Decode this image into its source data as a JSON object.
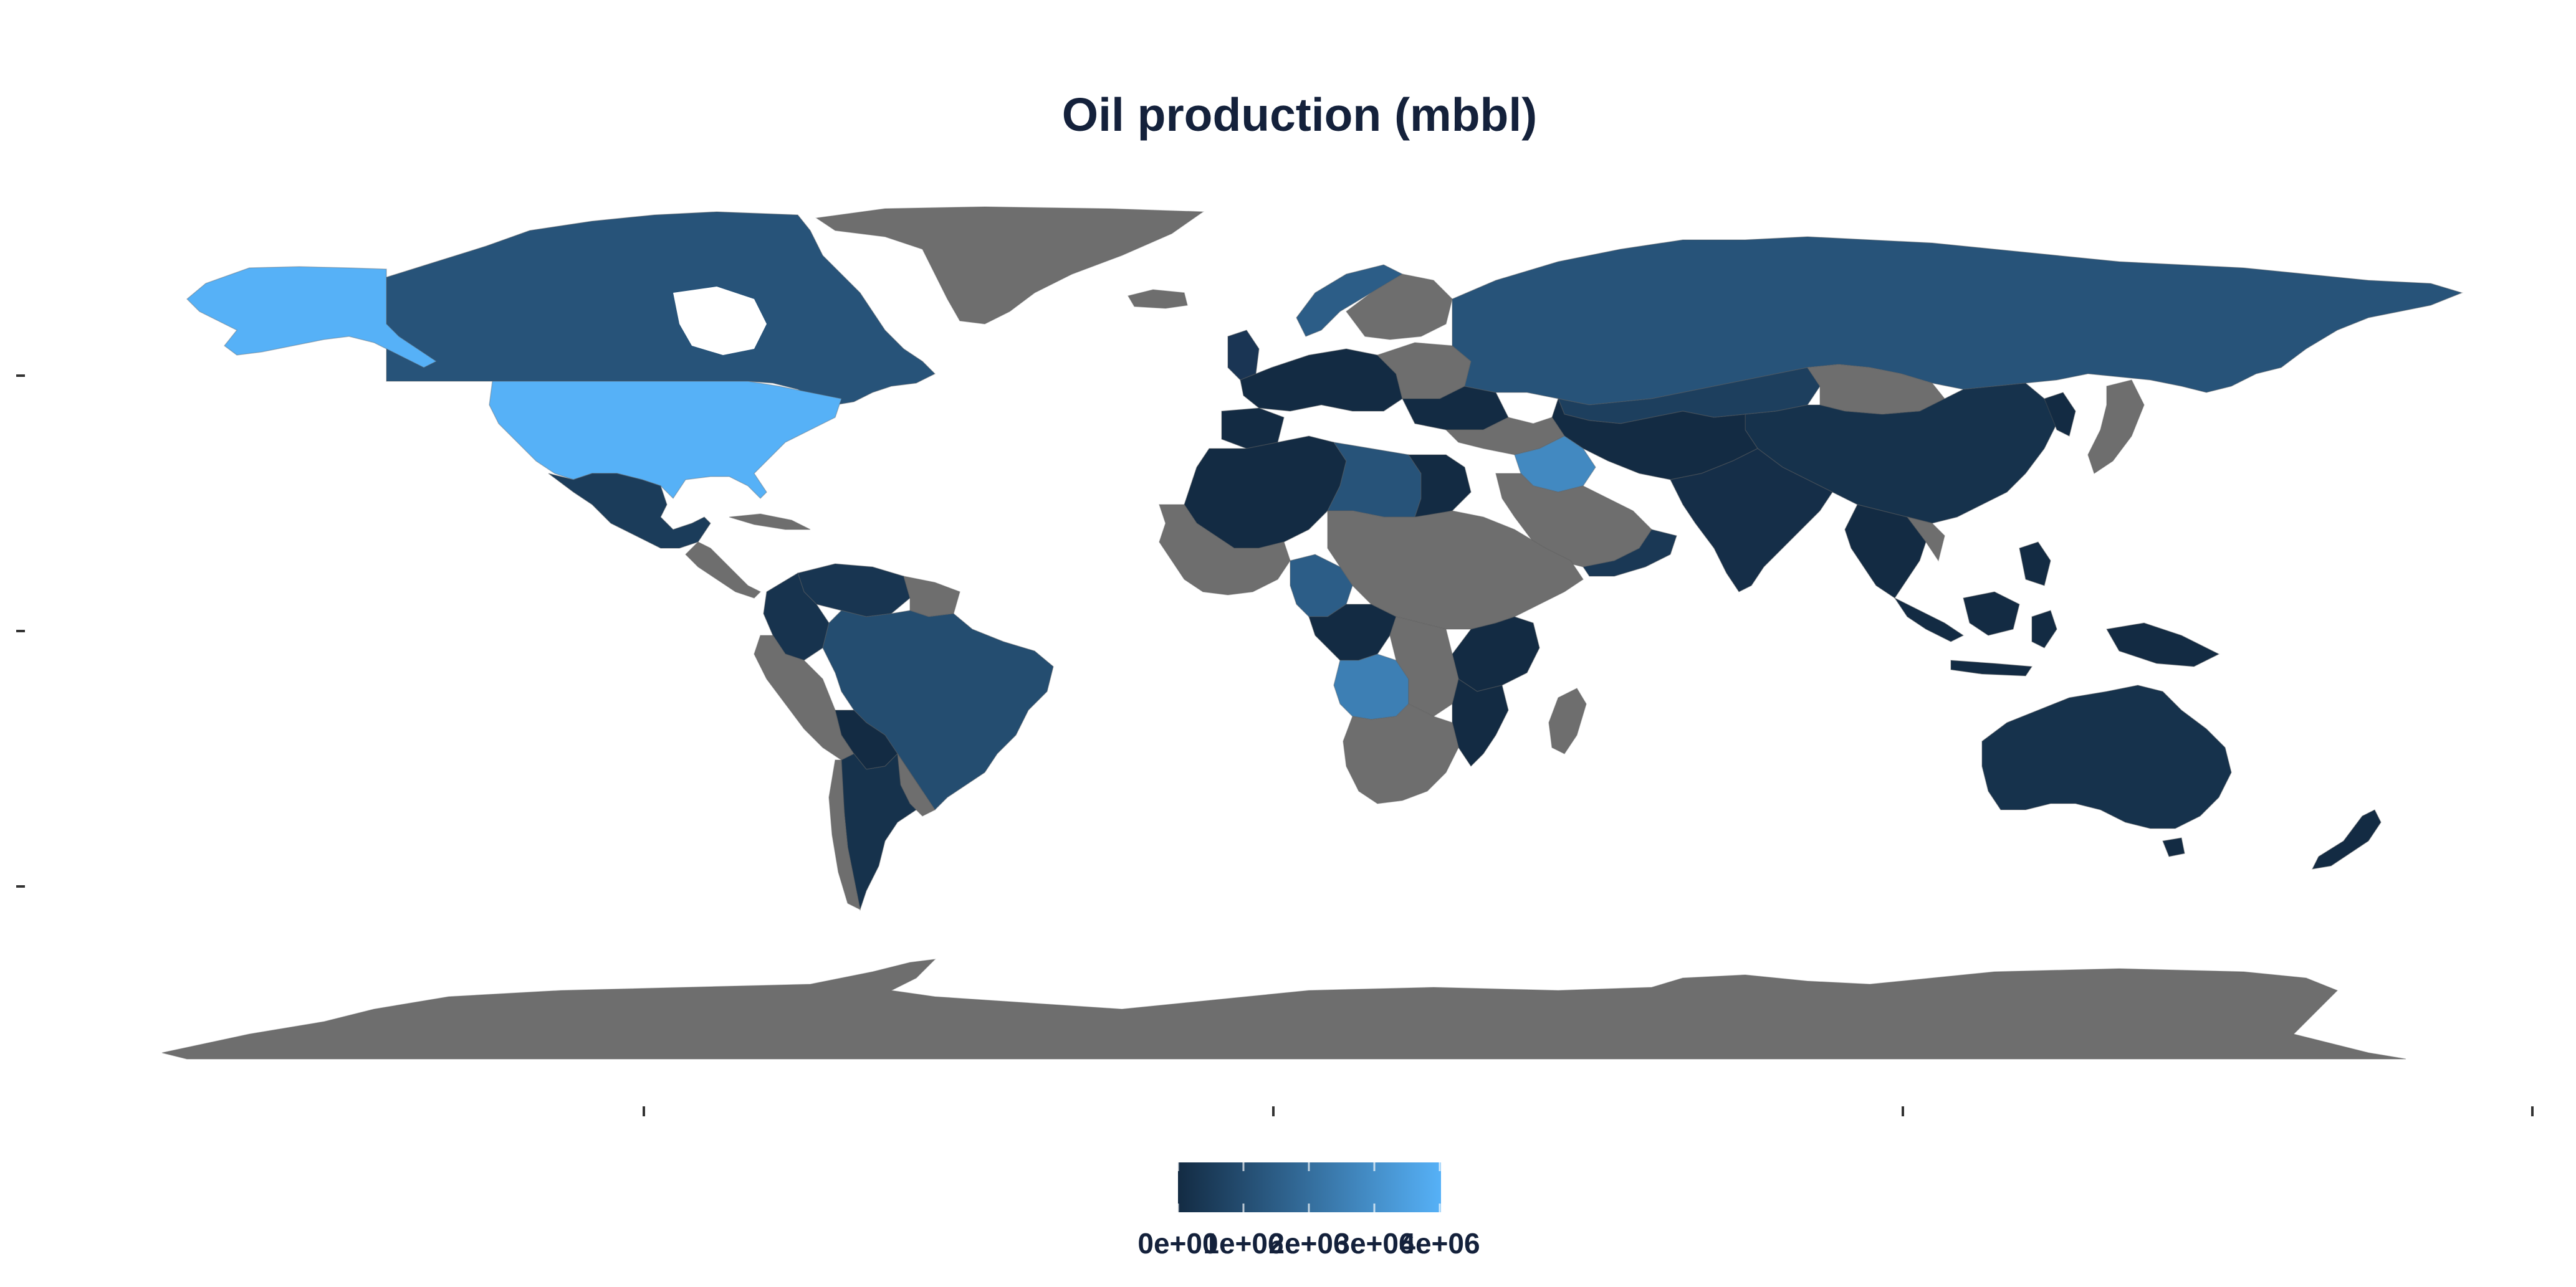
{
  "title": "Oil production (mbbl)",
  "colors": {
    "low": "#132b43",
    "high": "#56b1f7",
    "na": "#6e6e6e",
    "text": "#14213b"
  },
  "legend": {
    "labels": [
      "0e+00",
      "1e+06",
      "2e+06",
      "3e+06",
      "4e+06"
    ],
    "min": 0,
    "max": 4000000
  },
  "chart_data": {
    "type": "heatmap",
    "title": "Oil production (mbbl)",
    "regions": [
      {
        "name": "United States",
        "value": 4000000
      },
      {
        "name": "Alaska",
        "value": 4000000
      },
      {
        "name": "Canada",
        "value": 1200000
      },
      {
        "name": "Mexico",
        "value": 500000
      },
      {
        "name": "Brazil",
        "value": 1000000
      },
      {
        "name": "Venezuela",
        "value": 300000
      },
      {
        "name": "Colombia",
        "value": 250000
      },
      {
        "name": "Argentina",
        "value": 200000
      },
      {
        "name": "Russia",
        "value": 1200000
      },
      {
        "name": "Kazakhstan",
        "value": 600000
      },
      {
        "name": "China",
        "value": 200000
      },
      {
        "name": "India",
        "value": 100000
      },
      {
        "name": "Iraq",
        "value": 2800000
      },
      {
        "name": "Oman",
        "value": 400000
      },
      {
        "name": "Libya",
        "value": 1200000
      },
      {
        "name": "Nigeria",
        "value": 1500000
      },
      {
        "name": "Angola",
        "value": 2500000
      },
      {
        "name": "Norway",
        "value": 1500000
      },
      {
        "name": "Australia",
        "value": 200000
      },
      {
        "name": "Greenland",
        "value": null
      },
      {
        "name": "Antarctica",
        "value": null
      }
    ]
  }
}
